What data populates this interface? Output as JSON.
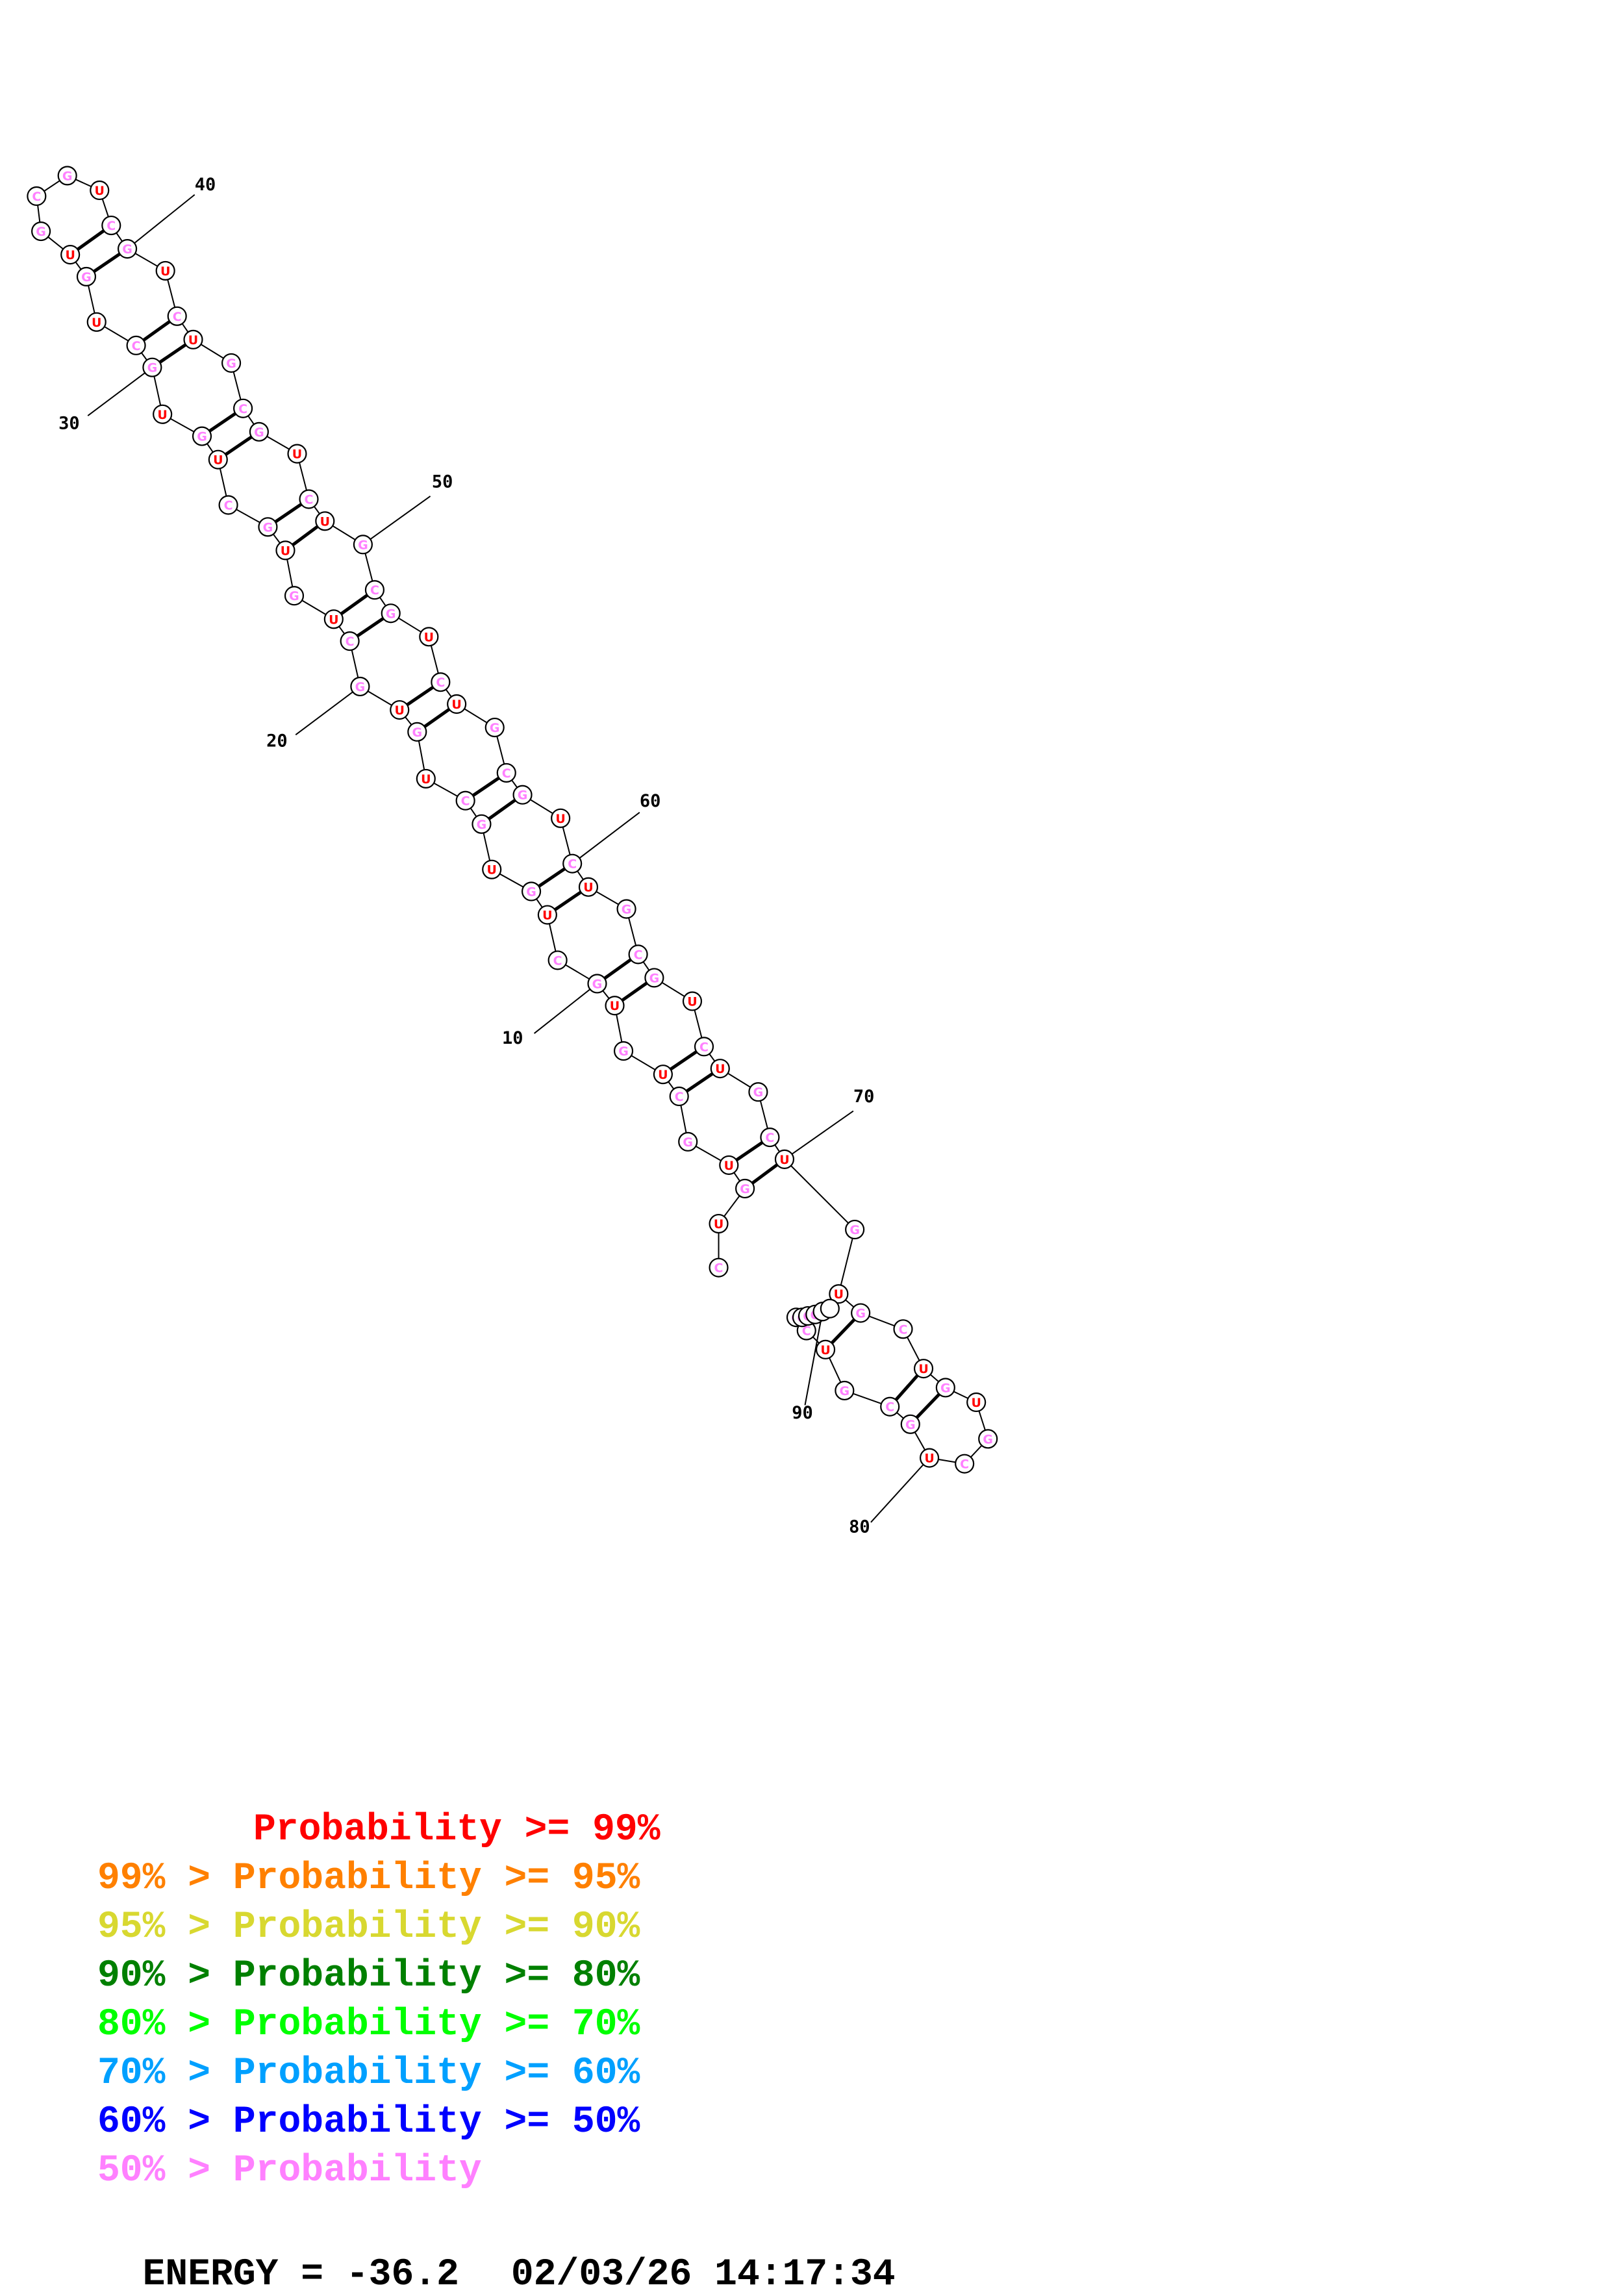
{
  "sequence": "CUGUGCUGUGCUGUGCUGUGCUGUGCUGUGCUGUGCGUCGUCUGCGUCUGCGUCUGCGUCUGCGUCUGCUGUGCUGUGCUGCGUCGGGG",
  "nucleotide_colors": {
    "U": "#ff0000",
    "G": "#ff80ff",
    "C": "#ff80ff"
  },
  "position_labels": [
    "10",
    "20",
    "30",
    "40",
    "50",
    "60",
    "70",
    "80",
    "90"
  ],
  "legend": [
    {
      "prefix": "",
      "text": "Probability >= 99%",
      "color": "#ff0000"
    },
    {
      "prefix": "99% > ",
      "text": "Probability >= 95%",
      "color": "#ff8000"
    },
    {
      "prefix": "95% > ",
      "text": "Probability >= 90%",
      "color": "#d8d830"
    },
    {
      "prefix": "90% > ",
      "text": "Probability >= 80%",
      "color": "#008000"
    },
    {
      "prefix": "80% > ",
      "text": "Probability >= 70%",
      "color": "#00ff00"
    },
    {
      "prefix": "70% > ",
      "text": "Probability >= 60%",
      "color": "#00a0ff"
    },
    {
      "prefix": "60% > ",
      "text": "Probability >= 50%",
      "color": "#0000ff"
    },
    {
      "prefix": "50% > ",
      "text": "Probability",
      "color": "#ff80ff"
    }
  ],
  "footer": {
    "energy": "ENERGY = -36.2",
    "timestamp": "02/03/26 14:17:34"
  }
}
